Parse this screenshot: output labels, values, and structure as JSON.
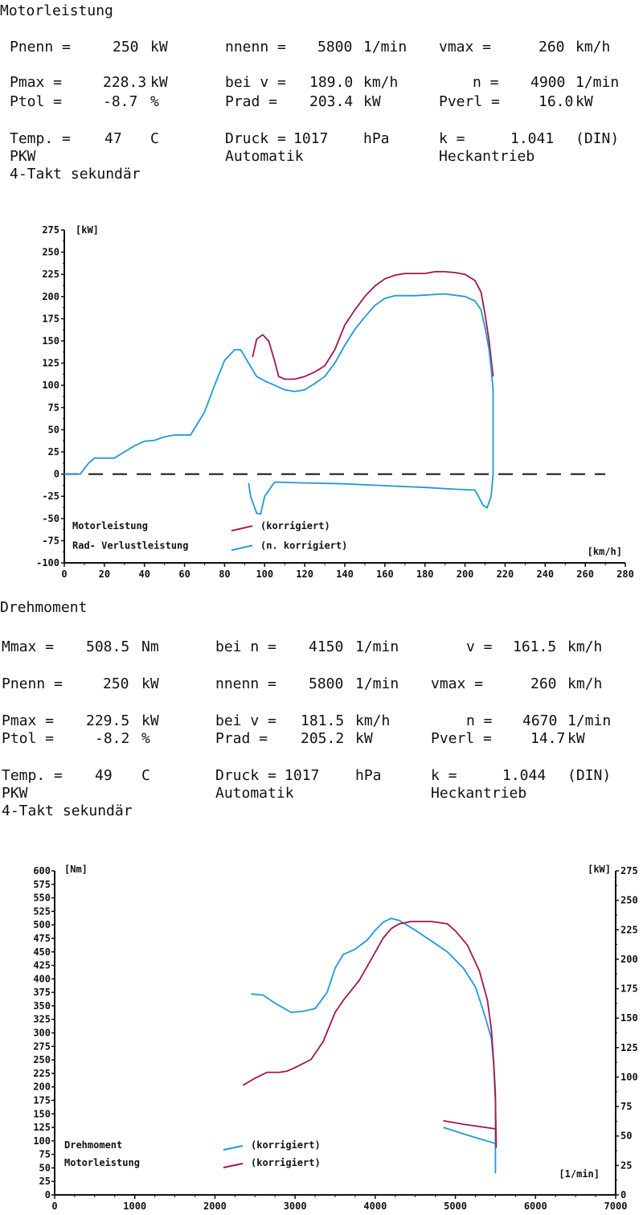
{
  "sections": [
    {
      "title": "Motorleistung",
      "rows": [
        [
          {
            "label": "Pnenn =",
            "value": "250",
            "unit": "kW"
          },
          {
            "label": "nnenn =",
            "value": "5800",
            "unit": "1/min"
          },
          {
            "label": "vmax =",
            "value": "260",
            "unit": "km/h"
          }
        ],
        [
          {
            "label": "Pmax =",
            "value": "228.3",
            "unit": "kW"
          },
          {
            "label": "bei v =",
            "value": "189.0",
            "unit": "km/h"
          },
          {
            "label": "n =",
            "value": "4900",
            "unit": "1/min"
          }
        ],
        [
          {
            "label": "Ptol =",
            "value": "-8.7",
            "unit": "%"
          },
          {
            "label": "Prad =",
            "value": "203.4",
            "unit": "kW"
          },
          {
            "label": "Pverl =",
            "value": "16.0",
            "unit": "kW"
          }
        ],
        [
          {
            "label": "Temp. =",
            "value": "47",
            "unit": "C"
          },
          {
            "label": "Druck =",
            "value": "1017",
            "unit": "hPa"
          },
          {
            "label": "k =",
            "value": "1.041",
            "unit": "(DIN)"
          }
        ]
      ],
      "info": [
        "PKW",
        "Automatik",
        "Heckantrieb",
        "4-Takt sekundär"
      ]
    },
    {
      "title": "Drehmoment",
      "rows": [
        [
          {
            "label": "Mmax =",
            "value": "508.5",
            "unit": "Nm"
          },
          {
            "label": "bei n =",
            "value": "4150",
            "unit": "1/min"
          },
          {
            "label": "v =",
            "value": "161.5",
            "unit": "km/h"
          }
        ],
        [
          {
            "label": "Pnenn =",
            "value": "250",
            "unit": "kW"
          },
          {
            "label": "nnenn =",
            "value": "5800",
            "unit": "1/min"
          },
          {
            "label": "vmax =",
            "value": "260",
            "unit": "km/h"
          }
        ],
        [
          {
            "label": "Pmax =",
            "value": "229.5",
            "unit": "kW"
          },
          {
            "label": "bei v =",
            "value": "181.5",
            "unit": "km/h"
          },
          {
            "label": "n =",
            "value": "4670",
            "unit": "1/min"
          }
        ],
        [
          {
            "label": "Ptol =",
            "value": "-8.2",
            "unit": "%"
          },
          {
            "label": "Prad =",
            "value": "205.2",
            "unit": "kW"
          },
          {
            "label": "Pverl =",
            "value": "14.7",
            "unit": "kW"
          }
        ],
        [
          {
            "label": "Temp. =",
            "value": "49",
            "unit": "C"
          },
          {
            "label": "Druck =",
            "value": "1017",
            "unit": "hPa"
          },
          {
            "label": "k =",
            "value": "1.044",
            "unit": "(DIN)"
          }
        ]
      ],
      "info": [
        "PKW",
        "Automatik",
        "Heckantrieb",
        "4-Takt sekundär"
      ]
    }
  ],
  "colors": {
    "korrigiert_red": "#a3164b",
    "blue": "#1e9ad6",
    "axis": "#111111"
  },
  "chart_data": [
    {
      "type": "line",
      "title": "",
      "ylabel": "[kW]",
      "xlabel": "[km/h]",
      "xlim": [
        0,
        280
      ],
      "ylim": [
        -100,
        275
      ],
      "xticks": [
        "0",
        "20",
        "40",
        "60",
        "80",
        "100",
        "120",
        "140",
        "160",
        "180",
        "200",
        "220",
        "240",
        "260",
        "280"
      ],
      "yticks": [
        "275",
        "250",
        "225",
        "200",
        "175",
        "150",
        "125",
        "100",
        "75",
        "50",
        "25",
        "0",
        "-25",
        "-50",
        "-75",
        "-100"
      ],
      "legend": [
        {
          "label": "Motorleistung",
          "desc": "(korrigiert)",
          "color": "#a3164b"
        },
        {
          "label": "Rad- Verlustleistung",
          "desc": "(n. korrigiert)",
          "color": "#1e9ad6"
        }
      ],
      "series": [
        {
          "name": "Motorleistung (korrigiert)",
          "color": "#a3164b",
          "points": [
            [
              94,
              132
            ],
            [
              96,
              152
            ],
            [
              99,
              157
            ],
            [
              102,
              150
            ],
            [
              105,
              127
            ],
            [
              107,
              110
            ],
            [
              110,
              107
            ],
            [
              115,
              107
            ],
            [
              120,
              110
            ],
            [
              125,
              115
            ],
            [
              130,
              122
            ],
            [
              135,
              140
            ],
            [
              140,
              168
            ],
            [
              145,
              185
            ],
            [
              150,
              200
            ],
            [
              155,
              212
            ],
            [
              160,
              220
            ],
            [
              165,
              224
            ],
            [
              170,
              226
            ],
            [
              180,
              226
            ],
            [
              185,
              228
            ],
            [
              190,
              228
            ],
            [
              195,
              227
            ],
            [
              200,
              225
            ],
            [
              205,
              218
            ],
            [
              208,
              205
            ],
            [
              210,
              180
            ],
            [
              212,
              150
            ],
            [
              213,
              130
            ],
            [
              214,
              110
            ]
          ]
        },
        {
          "name": "Motorleistung (n. korrigiert)",
          "color": "#1e9ad6",
          "points": [
            [
              0,
              0
            ],
            [
              8,
              0
            ],
            [
              12,
              12
            ],
            [
              15,
              18
            ],
            [
              25,
              18
            ],
            [
              30,
              25
            ],
            [
              35,
              32
            ],
            [
              40,
              37
            ],
            [
              45,
              38
            ],
            [
              50,
              42
            ],
            [
              55,
              44
            ],
            [
              63,
              44
            ],
            [
              66,
              55
            ],
            [
              70,
              70
            ],
            [
              75,
              100
            ],
            [
              80,
              128
            ],
            [
              85,
              140
            ],
            [
              88,
              140
            ],
            [
              92,
              125
            ],
            [
              96,
              110
            ],
            [
              100,
              105
            ],
            [
              105,
              100
            ],
            [
              110,
              95
            ],
            [
              115,
              93
            ],
            [
              120,
              95
            ],
            [
              125,
              102
            ],
            [
              130,
              110
            ],
            [
              135,
              125
            ],
            [
              140,
              145
            ],
            [
              145,
              163
            ],
            [
              150,
              177
            ],
            [
              155,
              190
            ],
            [
              160,
              198
            ],
            [
              165,
              201
            ],
            [
              175,
              201
            ],
            [
              190,
              203
            ],
            [
              200,
              200
            ],
            [
              205,
              195
            ],
            [
              208,
              185
            ],
            [
              210,
              165
            ],
            [
              212,
              140
            ],
            [
              213,
              120
            ],
            [
              214,
              95
            ],
            [
              214,
              50
            ],
            [
              214,
              10
            ],
            [
              214,
              0
            ],
            [
              213,
              -25
            ],
            [
              211,
              -38
            ],
            [
              209,
              -35
            ],
            [
              205,
              -18
            ],
            [
              195,
              -17
            ],
            [
              180,
              -15
            ],
            [
              160,
              -13
            ],
            [
              140,
              -11
            ],
            [
              120,
              -10
            ],
            [
              105,
              -9
            ],
            [
              100,
              -25
            ],
            [
              98,
              -45
            ],
            [
              96,
              -44
            ],
            [
              93,
              -25
            ],
            [
              92,
              -10
            ]
          ]
        }
      ],
      "zero_line": {
        "y": 0,
        "x_from": 0,
        "x_to": 270,
        "style": "dashed"
      }
    },
    {
      "type": "line",
      "title": "",
      "ylabel": "[Nm]",
      "y2label": "[kW]",
      "xlabel": "[1/min]",
      "xlim": [
        0,
        7000
      ],
      "ylim": [
        0,
        600
      ],
      "y2lim": [
        0,
        275
      ],
      "xticks": [
        "0",
        "1000",
        "2000",
        "3000",
        "4000",
        "5000",
        "6000",
        "7000"
      ],
      "yticks": [
        "600",
        "575",
        "550",
        "525",
        "500",
        "475",
        "450",
        "425",
        "400",
        "375",
        "350",
        "325",
        "300",
        "275",
        "250",
        "225",
        "200",
        "175",
        "150",
        "125",
        "100",
        "75",
        "50",
        "25",
        "0"
      ],
      "y2ticks": [
        "275",
        "250",
        "225",
        "200",
        "175",
        "150",
        "125",
        "100",
        "75",
        "50",
        "25",
        "0"
      ],
      "legend": [
        {
          "label": "Drehmoment",
          "desc": "(korrigiert)",
          "color": "#1e9ad6"
        },
        {
          "label": "Motorleistung",
          "desc": "(korrigiert)",
          "color": "#a3164b"
        }
      ],
      "series": [
        {
          "name": "Drehmoment (korrigiert)",
          "axis": "left",
          "color": "#1e9ad6",
          "points": [
            [
              2450,
              372
            ],
            [
              2600,
              370
            ],
            [
              2750,
              355
            ],
            [
              2950,
              338
            ],
            [
              3100,
              340
            ],
            [
              3250,
              345
            ],
            [
              3400,
              375
            ],
            [
              3500,
              420
            ],
            [
              3600,
              445
            ],
            [
              3750,
              455
            ],
            [
              3900,
              472
            ],
            [
              4000,
              490
            ],
            [
              4100,
              505
            ],
            [
              4200,
              512
            ],
            [
              4300,
              508
            ],
            [
              4500,
              490
            ],
            [
              4700,
              470
            ],
            [
              4900,
              450
            ],
            [
              5100,
              420
            ],
            [
              5250,
              385
            ],
            [
              5350,
              340
            ],
            [
              5450,
              290
            ],
            [
              5480,
              240
            ],
            [
              5500,
              190
            ],
            [
              5500,
              40
            ]
          ]
        },
        {
          "name": "Motorleistung (korrigiert)",
          "axis": "right",
          "color": "#a3164b",
          "points": [
            [
              2350,
              93
            ],
            [
              2500,
              99
            ],
            [
              2650,
              104
            ],
            [
              2800,
              104
            ],
            [
              2900,
              105
            ],
            [
              3000,
              108
            ],
            [
              3200,
              115
            ],
            [
              3350,
              130
            ],
            [
              3500,
              155
            ],
            [
              3600,
              165
            ],
            [
              3800,
              182
            ],
            [
              3950,
              200
            ],
            [
              4100,
              218
            ],
            [
              4200,
              226
            ],
            [
              4300,
              230
            ],
            [
              4450,
              232
            ],
            [
              4700,
              232
            ],
            [
              4900,
              230
            ],
            [
              5000,
              224
            ],
            [
              5150,
              212
            ],
            [
              5300,
              190
            ],
            [
              5400,
              165
            ],
            [
              5450,
              140
            ],
            [
              5480,
              110
            ],
            [
              5500,
              80
            ],
            [
              5510,
              40
            ]
          ]
        },
        {
          "name": "Drehmoment (korrigiert) low",
          "axis": "left",
          "color": "#1e9ad6",
          "points": [
            [
              4850,
              125
            ],
            [
              5100,
              113
            ],
            [
              5300,
              104
            ],
            [
              5500,
              95
            ]
          ]
        },
        {
          "name": "Motorleistung (korrigiert) low",
          "axis": "right",
          "color": "#a3164b",
          "points": [
            [
              4850,
              63
            ],
            [
              5100,
              60
            ],
            [
              5300,
              58
            ],
            [
              5500,
              56
            ]
          ]
        }
      ]
    }
  ]
}
